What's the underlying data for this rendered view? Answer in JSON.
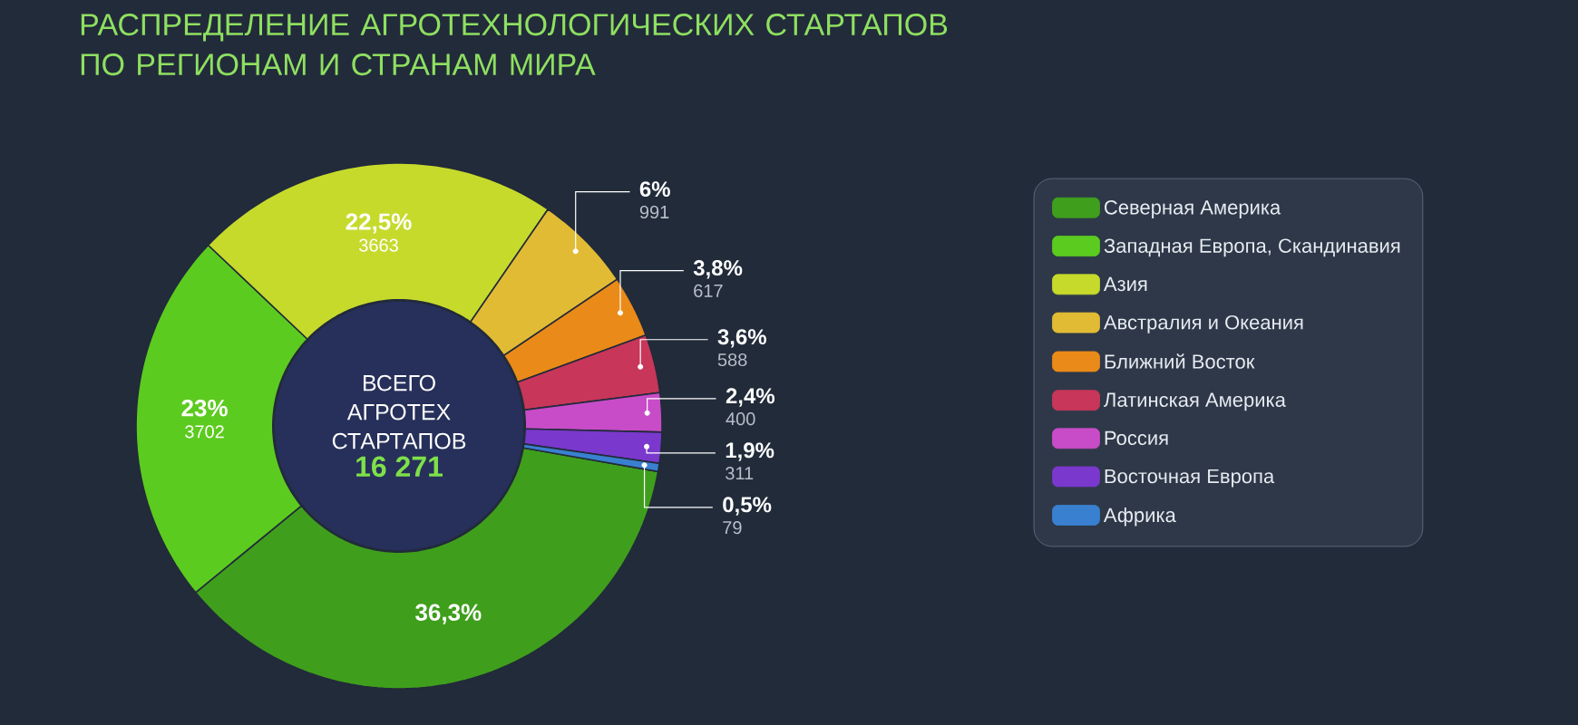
{
  "chart_data": {
    "type": "donut",
    "title": "РАСПРЕДЕЛЕНИЕ АГРОТЕХНОЛОГИЧЕСКИХ СТАРТАПОВ ПО РЕГИОНАМ И СТРАНАМ МИРА",
    "categories": [
      "Северная Америка",
      "Западная Европа, Скандинавия",
      "Азия",
      "Австралия и Океания",
      "Ближний Восток",
      "Латинская Америка",
      "Россия",
      "Восточная Европа",
      "Африка"
    ],
    "values": [
      36.3,
      23,
      22.5,
      6,
      3.8,
      3.6,
      2.4,
      1.9,
      0.5
    ],
    "colors": [
      "#3f9f1c",
      "#5ccb1f",
      "#c6da2c",
      "#e2bb35",
      "#ea8a18",
      "#c8365a",
      "#c84cc8",
      "#7a38cc",
      "#3a80d0"
    ],
    "value_labels": [
      "36,3%",
      "23%",
      "22,5%",
      "6%",
      "3,8%",
      "3,6%",
      "2,4%",
      "1,9%",
      "0,5%"
    ],
    "legend": "right",
    "annotations": [
      "ВСЕГО АГРОТЕХ СТАРТАПОВ",
      "16 271",
      {
        "text": "3702",
        "x": "Западная Европа, Скандинавия"
      },
      {
        "text": "3663",
        "x": "Азия"
      },
      {
        "text": "991",
        "x": "Австралия и Океания"
      },
      {
        "text": "617",
        "x": "Ближний Восток"
      },
      {
        "text": "588",
        "x": "Латинская Америка"
      },
      {
        "text": "400",
        "x": "Россия"
      },
      {
        "text": "311",
        "x": "Восточная Европа"
      },
      {
        "text": "79",
        "x": "Африка"
      }
    ]
  }
}
